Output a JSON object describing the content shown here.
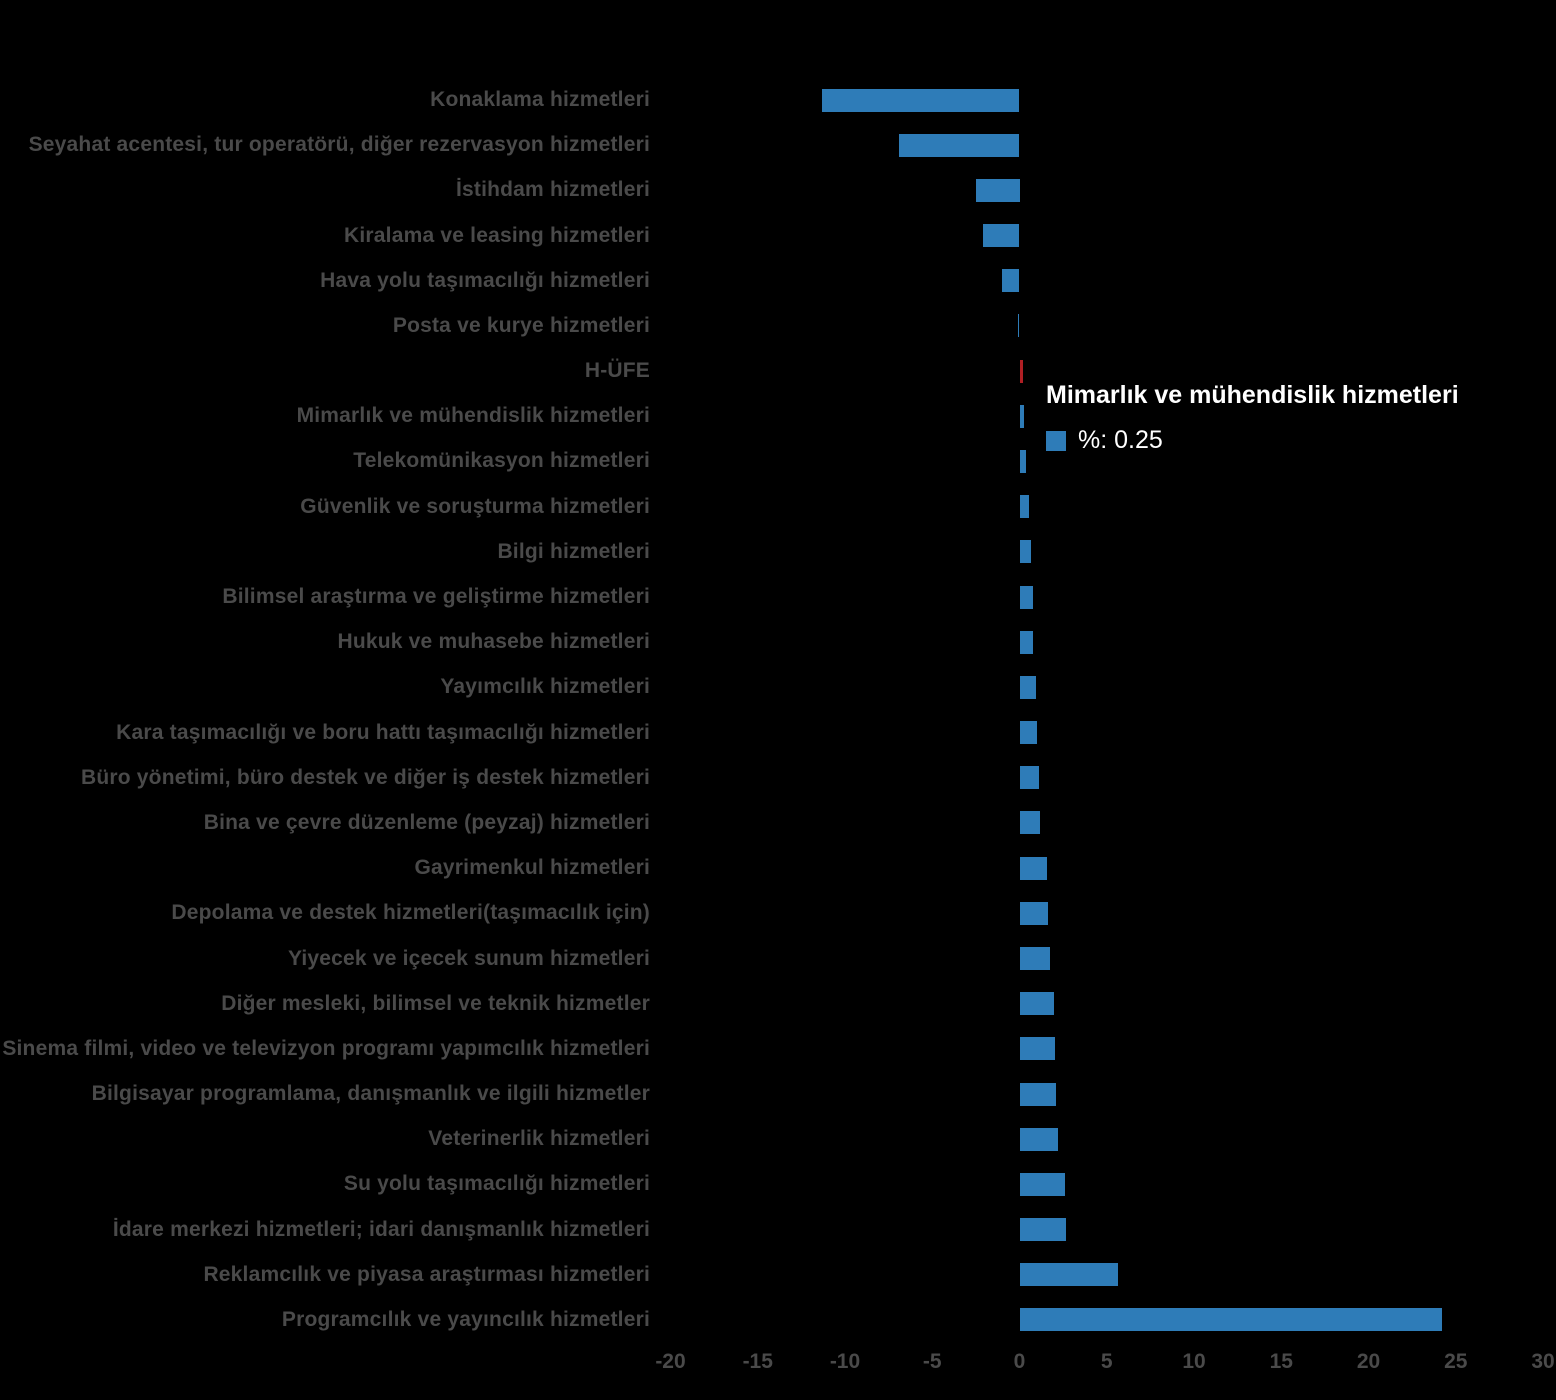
{
  "colors": {
    "background": "#000000",
    "bar_blue": "#2e7cb8",
    "bar_red": "#b01f24",
    "label_gray": "#4a4a4a",
    "tooltip_text": "#ffffff"
  },
  "chart_data": {
    "type": "bar",
    "orientation": "horizontal",
    "unit": "%",
    "title": "",
    "xlabel": "",
    "ylabel": "",
    "grid": false,
    "legend_position": "none",
    "x_ticks": [
      -20,
      -15,
      -10,
      -5,
      0,
      5,
      10,
      15,
      20,
      25,
      30
    ],
    "xlim": [
      -22,
      31
    ],
    "highlight_index": 6,
    "categories": [
      "Konaklama hizmetleri",
      "Seyahat acentesi, tur operatörü, diğer rezervasyon hizmetleri",
      "İstihdam hizmetleri",
      "Kiralama ve leasing hizmetleri",
      "Hava yolu taşımacılığı hizmetleri",
      "Posta ve kurye hizmetleri",
      "H-ÜFE",
      "Mimarlık ve mühendislik hizmetleri",
      "Telekomünikasyon hizmetleri",
      "Güvenlik ve soruşturma hizmetleri",
      "Bilgi hizmetleri",
      "Bilimsel araştırma ve geliştirme hizmetleri",
      "Hukuk ve muhasebe hizmetleri",
      "Yayımcılık hizmetleri",
      "Kara taşımacılığı ve boru hattı taşımacılığı hizmetleri",
      "Büro yönetimi, büro destek ve diğer iş destek hizmetleri",
      "Bina ve çevre düzenleme (peyzaj) hizmetleri",
      "Gayrimenkul hizmetleri",
      "Depolama ve destek hizmetleri(taşımacılık için)",
      "Yiyecek ve içecek sunum hizmetleri",
      "Diğer mesleki, bilimsel ve teknik hizmetler",
      "Sinema filmi, video ve televizyon programı yapımcılık hizmetleri",
      "Bilgisayar programlama, danışmanlık ve ilgili hizmetler",
      "Veterinerlik hizmetleri",
      "Su yolu taşımacılığı hizmetleri",
      "İdare merkezi hizmetleri; idari danışmanlık hizmetleri",
      "Reklamcılık ve piyasa araştırması hizmetleri",
      "Programcılık ve yayıncılık hizmetleri"
    ],
    "values": [
      -11.3,
      -6.9,
      -2.5,
      -2.1,
      -1.0,
      -0.05,
      0.2,
      0.25,
      0.35,
      0.55,
      0.65,
      0.75,
      0.8,
      0.95,
      1.0,
      1.1,
      1.15,
      1.6,
      1.65,
      1.75,
      2.0,
      2.05,
      2.1,
      2.2,
      2.6,
      2.65,
      5.65,
      24.2
    ]
  },
  "tooltip": {
    "title": "Mimarlık ve mühendislik hizmetleri",
    "value_label": "%: 0.25"
  }
}
